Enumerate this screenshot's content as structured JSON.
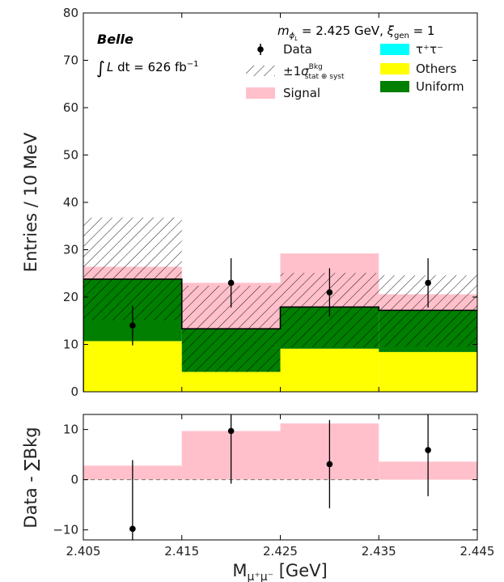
{
  "chart_data": {
    "type": "bar",
    "main_panel": {
      "bin_edges": [
        2.405,
        2.415,
        2.425,
        2.435,
        2.445
      ],
      "xlim": [
        2.405,
        2.445
      ],
      "ylim": [
        0,
        80
      ],
      "yticks": [
        0,
        10,
        20,
        30,
        40,
        50,
        60,
        70,
        80
      ],
      "ylabel": "Entries / 10 MeV",
      "stacked_series": [
        {
          "name": "Others",
          "values": [
            10.7,
            4.2,
            9.1,
            8.4
          ],
          "color": "#ffff00"
        },
        {
          "name": "Uniform",
          "values": [
            13.1,
            9.1,
            8.8,
            8.8
          ],
          "color": "#007f00"
        },
        {
          "name": "τ⁺τ⁻",
          "values": [
            0,
            0,
            0,
            0
          ],
          "color": "#00ffff"
        }
      ],
      "total_background": [
        23.8,
        13.3,
        17.9,
        17.2
      ],
      "signal_top": [
        26.4,
        23.0,
        29.2,
        20.6
      ],
      "bkg_uncertainty": {
        "low": [
          15.1,
          4.2,
          9.4,
          9.5
        ],
        "high": [
          36.8,
          22.4,
          25.1,
          24.6
        ]
      },
      "data": {
        "x": [
          2.41,
          2.42,
          2.43,
          2.44
        ],
        "y": [
          14.0,
          23.0,
          21.0,
          23.0
        ],
        "err": [
          4.2,
          5.2,
          5.1,
          5.2
        ]
      }
    },
    "ratio_panel": {
      "ylabel": "Data - ∑Bkg",
      "ylim": [
        -12,
        13
      ],
      "yticks": [
        -10,
        0,
        10
      ],
      "signal": [
        2.8,
        9.7,
        11.2,
        3.6
      ],
      "data": {
        "x": [
          2.41,
          2.42,
          2.43,
          2.44
        ],
        "y": [
          -9.8,
          9.7,
          3.1,
          5.9
        ],
        "err_low": [
          4.2,
          10.5,
          8.8,
          9.2
        ],
        "err_high": [
          13.7,
          12.5,
          8.8,
          7.5
        ]
      }
    },
    "xlabel": "M",
    "xlabel_sub": "μ⁺μ⁻",
    "xlabel_unit": " [GeV]",
    "xticks": [
      "2.405",
      "2.415",
      "2.425",
      "2.435",
      "2.445"
    ],
    "annotations": {
      "experiment": "Belle",
      "lumi_prefix": "∫",
      "lumi_L": "L",
      "lumi_text": " dt = 626 fb",
      "lumi_sup": "−1",
      "mass_m": "m",
      "mass_sub": "ϕ",
      "mass_subsub": "L",
      "mass_text": " = 2.425 GeV, ",
      "xi": "ξ",
      "xi_sub": "gen",
      "xi_text": " = 1"
    },
    "legend": {
      "data": "Data",
      "band_pm": "±1",
      "band_sigma": "σ",
      "band_sup": "Bkg",
      "band_sub": "stat ⊕ syst",
      "signal": "Signal",
      "tautau_label": "τ⁺τ⁻",
      "others_label": "Others",
      "uniform_label": "Uniform",
      "placement": "top-right"
    },
    "colors": {
      "signal": "#ffc0cb",
      "others": "#ffff00",
      "uniform": "#007f00",
      "tautau": "#00ffff",
      "data": "#000000"
    }
  }
}
